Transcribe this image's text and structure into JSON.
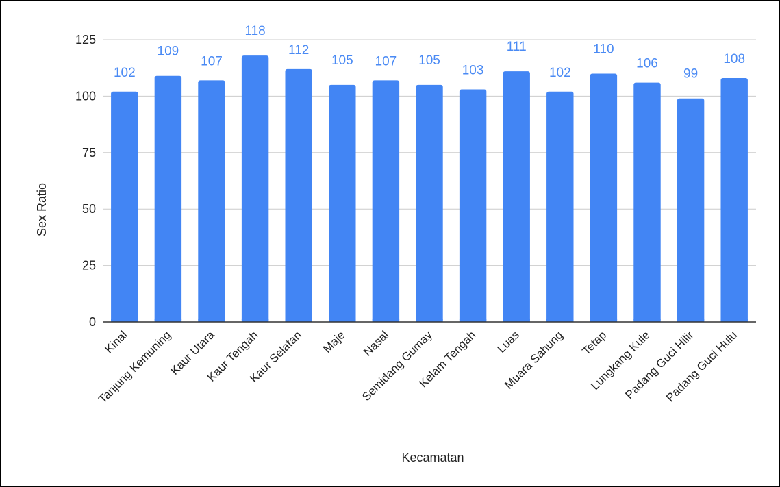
{
  "chart_data": {
    "type": "bar",
    "xlabel": "Kecamatan",
    "ylabel": "Sex Ratio",
    "ylim": [
      0,
      125
    ],
    "yticks": [
      0,
      25,
      50,
      75,
      100,
      125
    ],
    "grid": true,
    "bar_color": "#4285f4",
    "label_color": "#4a8af4",
    "categories": [
      "Kinal",
      "Tanjung Kemuning",
      "Kaur Utara",
      "Kaur Tengah",
      "Kaur Selatan",
      "Maje",
      "Nasal",
      "Semidang Gumay",
      "Kelam Tengah",
      "Luas",
      "Muara Sahung",
      "Tetap",
      "Lungkang Kule",
      "Padang Guci Hilir",
      "Padang Guci Hulu"
    ],
    "values": [
      102,
      109,
      107,
      118,
      112,
      105,
      107,
      105,
      103,
      111,
      102,
      110,
      106,
      99,
      108
    ]
  }
}
